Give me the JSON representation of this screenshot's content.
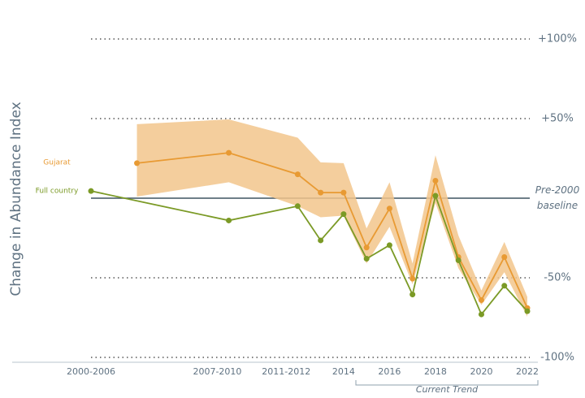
{
  "chart_data": {
    "type": "line",
    "y_label": "Change in Abundance Index",
    "annotation": "Current Trend",
    "xlim": [
      2003,
      2022
    ],
    "xticks": [
      {
        "value": 2003,
        "label": "2000-2006"
      },
      {
        "value": 2008.5,
        "label": "2007-2010"
      },
      {
        "value": 2011.5,
        "label": "2011-2012"
      },
      2014,
      2016,
      2018,
      2020,
      2022
    ],
    "ylim": [
      -100,
      100
    ],
    "yticks": [
      {
        "value": 100,
        "label": "+100%"
      },
      {
        "value": 50,
        "label": "+50%"
      },
      {
        "value": 0,
        "label": "Pre-2000 baseline"
      },
      {
        "value": -50,
        "label": "-50%"
      },
      {
        "value": -100,
        "label": "-100%"
      }
    ],
    "grid": true,
    "series": [
      {
        "name": "Gujarat",
        "color": "#e89a33",
        "band_color": "#f2c68c",
        "x": [
          2005,
          2009,
          2012,
          2013,
          2014,
          2015,
          2016,
          2017,
          2018,
          2019,
          2020,
          2021,
          2022
        ],
        "values": [
          22,
          28.5,
          15,
          3.5,
          3.5,
          -31,
          -6.5,
          -50.5,
          11,
          -37,
          -64,
          -37,
          -69
        ],
        "upper": [
          46.5,
          49.5,
          38,
          22.5,
          22,
          -19,
          10,
          -41,
          27,
          -23.5,
          -58,
          -27.5,
          -62
        ],
        "lower": [
          1,
          10,
          -5,
          -12,
          -11,
          -41,
          -18,
          -54,
          -3,
          -44,
          -67,
          -46.5,
          -74.5
        ]
      },
      {
        "name": "Full country",
        "color": "#7b9a26",
        "x": [
          2003,
          2009,
          2012,
          2013,
          2014,
          2015,
          2016,
          2017,
          2018,
          2019,
          2020,
          2021,
          2022
        ],
        "values": [
          4.5,
          -14,
          -5,
          -26.5,
          -10,
          -38,
          -29.5,
          -60.5,
          1.5,
          -39,
          -73,
          -55,
          -71
        ]
      }
    ]
  }
}
